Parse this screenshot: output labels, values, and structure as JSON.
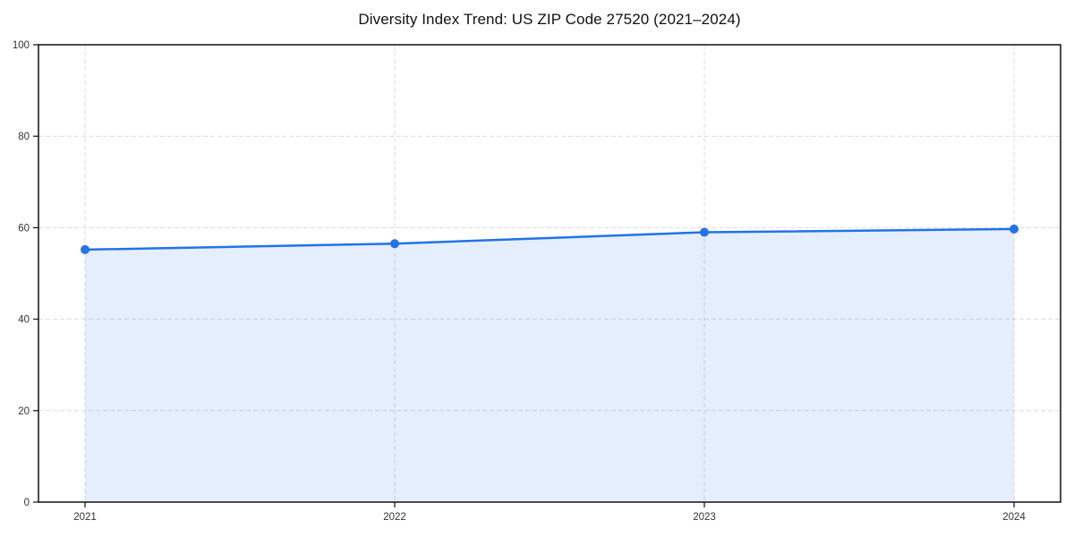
{
  "chart_data": {
    "type": "area",
    "title": "Diversity Index Trend: US ZIP Code 27520 (2021–2024)",
    "categories": [
      "2021",
      "2022",
      "2023",
      "2024"
    ],
    "values": [
      55.2,
      56.5,
      59.0,
      59.7
    ],
    "xlabel": "",
    "ylabel": "",
    "ylim": [
      0,
      100
    ],
    "yticks": [
      0,
      20,
      40,
      60,
      80,
      100
    ],
    "grid": true,
    "grid_style": "dashed",
    "legend_position": "none",
    "colors": {
      "line": "#2273e6",
      "marker": "#2273e6",
      "fill": "rgba(34,115,230,0.12)",
      "grid": "#dcdcdc",
      "spine": "#111111",
      "tick": "#111111",
      "tick_label": "#333333",
      "title": "#111111",
      "background": "#ffffff"
    }
  }
}
